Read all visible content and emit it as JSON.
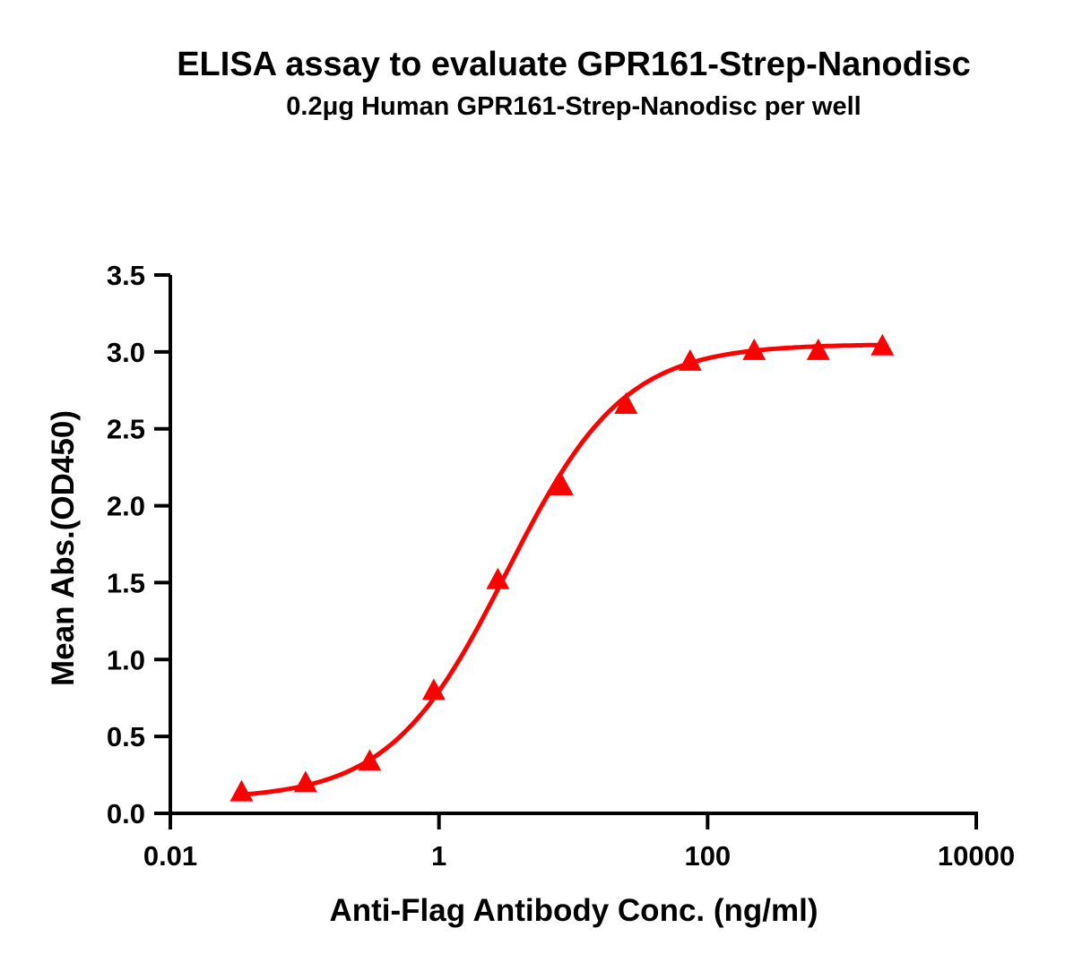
{
  "chart_data": {
    "type": "scatter",
    "title": "ELISA assay to evaluate GPR161-Strep-Nanodisc",
    "subtitle": "0.2μg Human GPR161-Strep-Nanodisc per well",
    "xlabel": "Anti-Flag Antibody Conc. (ng/ml)",
    "ylabel": "Mean Abs.(OD450)",
    "xscale": "log",
    "xlim": [
      0.01,
      10000
    ],
    "ylim": [
      0,
      3.5
    ],
    "xticks": [
      "0.01",
      "1",
      "100",
      "10000"
    ],
    "xtick_values": [
      0.01,
      1,
      100,
      10000
    ],
    "yticks": [
      "0.0",
      "0.5",
      "1.0",
      "1.5",
      "2.0",
      "2.5",
      "3.0",
      "3.5"
    ],
    "ytick_values": [
      0,
      0.5,
      1,
      1.5,
      2,
      2.5,
      3,
      3.5
    ],
    "grid": false,
    "color": "#ff0000",
    "marker": "triangle",
    "series": [
      {
        "x": [
          0.0339,
          0.1016,
          0.3048,
          0.9145,
          2.743,
          8.23,
          24.69,
          74.07,
          222.2,
          666.7,
          2000
        ],
        "y": [
          0.13,
          0.19,
          0.33,
          0.79,
          1.51,
          2.12,
          2.65,
          2.93,
          3.0,
          3.0,
          3.03
        ]
      }
    ],
    "fit": {
      "model": "4PL",
      "bottom": 0.09,
      "top": 3.05,
      "ec50": 3.2,
      "hill": 1.0
    }
  }
}
